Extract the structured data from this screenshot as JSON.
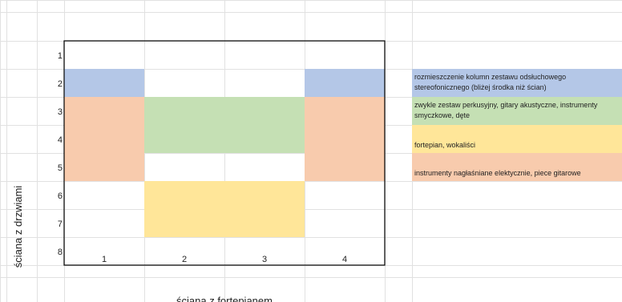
{
  "row_numbers": [
    "1",
    "2",
    "3",
    "4",
    "5",
    "6",
    "7",
    "8"
  ],
  "column_numbers": [
    "1",
    "2",
    "3",
    "4"
  ],
  "side_label": "ściana z drzwiami",
  "bottom_label": "ściana z fortepianem",
  "colors": {
    "blue": "#b4c7e7",
    "green": "#c5e0b4",
    "orange": "#f8cbad",
    "yellow": "#ffe699",
    "frame": "#000000",
    "gridline": "#e1e1e1"
  },
  "zones": [
    {
      "name": "zone-speakers-left",
      "color": "blue",
      "col_start": 1,
      "col_end": 1,
      "row_start": 2,
      "row_end": 2
    },
    {
      "name": "zone-speakers-right",
      "color": "blue",
      "col_start": 4,
      "col_end": 4,
      "row_start": 2,
      "row_end": 2
    },
    {
      "name": "zone-amplified-left",
      "color": "orange",
      "col_start": 1,
      "col_end": 1,
      "row_start": 3,
      "row_end": 5
    },
    {
      "name": "zone-amplified-right",
      "color": "orange",
      "col_start": 4,
      "col_end": 4,
      "row_start": 3,
      "row_end": 5
    },
    {
      "name": "zone-acoustic-center",
      "color": "green",
      "col_start": 2,
      "col_end": 3,
      "row_start": 3,
      "row_end": 4
    },
    {
      "name": "zone-piano-vocals",
      "color": "yellow",
      "col_start": 2,
      "col_end": 3,
      "row_start": 6,
      "row_end": 7
    }
  ],
  "legend": [
    {
      "name": "legend-speakers",
      "color": "blue",
      "lines": [
        "rozmieszczenie kolumn zestawu odsłuchowego",
        "stereofonicznego (bliżej środka niż ścian)"
      ]
    },
    {
      "name": "legend-acoustic",
      "color": "green",
      "lines": [
        "zwykle zestaw perkusyjny, gitary akustyczne, instrumenty",
        "smyczkowe, dęte"
      ]
    },
    {
      "name": "legend-piano-vocals",
      "color": "yellow",
      "lines": [
        "fortepian, wokaliści"
      ]
    },
    {
      "name": "legend-amplified",
      "color": "orange",
      "lines": [
        "instrumenty nagłaśniane elektycznie, piece gitarowe"
      ]
    }
  ]
}
